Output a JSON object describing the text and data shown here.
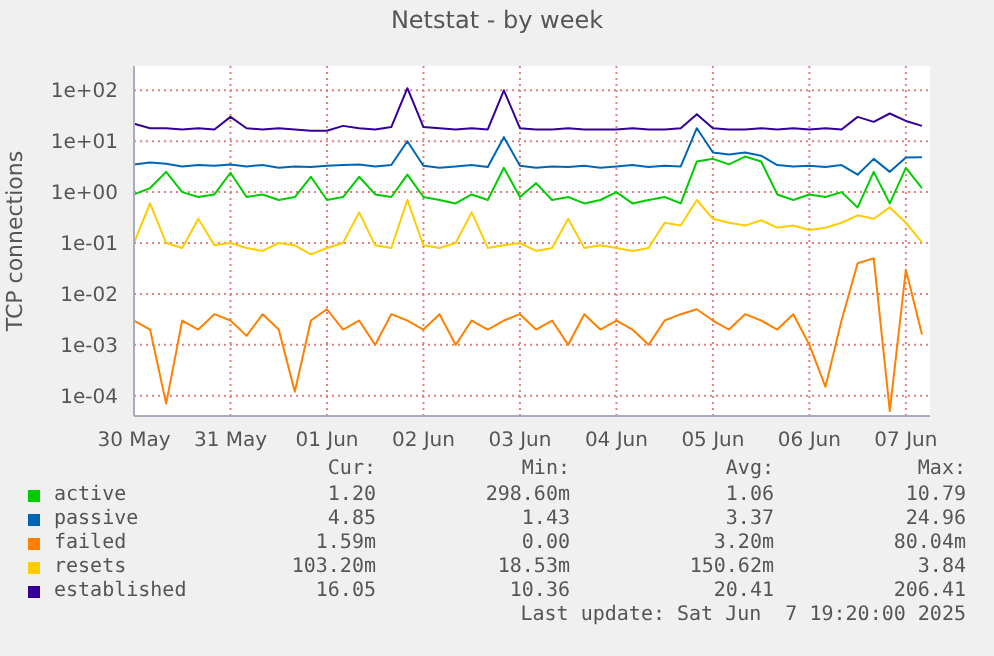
{
  "chart_data": {
    "type": "line",
    "title": "Netstat - by week",
    "ylabel": "TCP connections",
    "log": "y",
    "grid": true,
    "legend": "bottom",
    "marker": "none",
    "line_style": "solid",
    "x": [
      "2025-05-30T00:00",
      "2025-05-30T04:00",
      "2025-05-30T08:00",
      "2025-05-30T12:00",
      "2025-05-30T16:00",
      "2025-05-30T20:00",
      "2025-05-31T00:00",
      "2025-05-31T04:00",
      "2025-05-31T08:00",
      "2025-05-31T12:00",
      "2025-05-31T16:00",
      "2025-05-31T20:00",
      "2025-06-01T00:00",
      "2025-06-01T04:00",
      "2025-06-01T08:00",
      "2025-06-01T12:00",
      "2025-06-01T16:00",
      "2025-06-01T20:00",
      "2025-06-02T00:00",
      "2025-06-02T04:00",
      "2025-06-02T08:00",
      "2025-06-02T12:00",
      "2025-06-02T16:00",
      "2025-06-02T20:00",
      "2025-06-03T00:00",
      "2025-06-03T04:00",
      "2025-06-03T08:00",
      "2025-06-03T12:00",
      "2025-06-03T16:00",
      "2025-06-03T20:00",
      "2025-06-04T00:00",
      "2025-06-04T04:00",
      "2025-06-04T08:00",
      "2025-06-04T12:00",
      "2025-06-04T16:00",
      "2025-06-04T20:00",
      "2025-06-05T00:00",
      "2025-06-05T04:00",
      "2025-06-05T08:00",
      "2025-06-05T12:00",
      "2025-06-05T16:00",
      "2025-06-05T20:00",
      "2025-06-06T00:00",
      "2025-06-06T04:00",
      "2025-06-06T08:00",
      "2025-06-06T12:00",
      "2025-06-06T16:00",
      "2025-06-06T20:00",
      "2025-06-07T00:00",
      "2025-06-07T04:00"
    ],
    "xlim": [
      "2025-05-30T00:00",
      "2025-06-07T06:00"
    ],
    "xticks": [
      {
        "value": "2025-05-30T00:00",
        "label": "30 May"
      },
      {
        "value": "2025-05-31T00:00",
        "label": "31 May"
      },
      {
        "value": "2025-06-01T00:00",
        "label": "01 Jun"
      },
      {
        "value": "2025-06-02T00:00",
        "label": "02 Jun"
      },
      {
        "value": "2025-06-03T00:00",
        "label": "03 Jun"
      },
      {
        "value": "2025-06-04T00:00",
        "label": "04 Jun"
      },
      {
        "value": "2025-06-05T00:00",
        "label": "05 Jun"
      },
      {
        "value": "2025-06-06T00:00",
        "label": "06 Jun"
      },
      {
        "value": "2025-06-07T00:00",
        "label": "07 Jun"
      }
    ],
    "ylim": [
      4e-05,
      300
    ],
    "yticks": [
      {
        "value": 0.0001,
        "label": "1e-04"
      },
      {
        "value": 0.001,
        "label": "1e-03"
      },
      {
        "value": 0.01,
        "label": "1e-02"
      },
      {
        "value": 0.1,
        "label": "1e-01"
      },
      {
        "value": 1,
        "label": "1e+00"
      },
      {
        "value": 10,
        "label": "1e+01"
      },
      {
        "value": 100,
        "label": "1e+02"
      }
    ],
    "series": [
      {
        "name": "active",
        "color": "#00cc00",
        "values": [
          0.9,
          1.2,
          2.5,
          1.0,
          0.8,
          0.9,
          2.4,
          0.8,
          0.9,
          0.7,
          0.8,
          2.0,
          0.7,
          0.8,
          2.0,
          0.9,
          0.8,
          2.2,
          0.8,
          0.7,
          0.6,
          0.9,
          0.7,
          3.0,
          0.8,
          1.5,
          0.7,
          0.8,
          0.6,
          0.7,
          1.0,
          0.6,
          0.7,
          0.8,
          0.6,
          4.0,
          4.5,
          3.5,
          5.0,
          4.0,
          0.9,
          0.7,
          0.9,
          0.8,
          1.0,
          0.5,
          2.5,
          0.6,
          3.0,
          1.2
        ]
      },
      {
        "name": "passive",
        "color": "#0066b3",
        "values": [
          3.5,
          3.8,
          3.6,
          3.2,
          3.4,
          3.3,
          3.5,
          3.2,
          3.4,
          3.0,
          3.2,
          3.1,
          3.3,
          3.4,
          3.5,
          3.2,
          3.4,
          10,
          3.3,
          3.0,
          3.2,
          3.4,
          3.1,
          12,
          3.3,
          3.0,
          3.2,
          3.1,
          3.3,
          3.0,
          3.2,
          3.4,
          3.1,
          3.3,
          3.2,
          18,
          6,
          5.5,
          6,
          5.2,
          3.4,
          3.2,
          3.3,
          3.1,
          3.4,
          2.2,
          4.5,
          2.5,
          4.8,
          4.85
        ]
      },
      {
        "name": "failed",
        "color": "#ff8000",
        "values": [
          0.003,
          0.002,
          7e-05,
          0.003,
          0.002,
          0.004,
          0.003,
          0.0015,
          0.004,
          0.002,
          0.00012,
          0.003,
          0.005,
          0.002,
          0.003,
          0.001,
          0.004,
          0.003,
          0.002,
          0.004,
          0.001,
          0.003,
          0.002,
          0.003,
          0.004,
          0.002,
          0.003,
          0.001,
          0.004,
          0.002,
          0.003,
          0.002,
          0.001,
          0.003,
          0.004,
          0.005,
          0.003,
          0.002,
          0.004,
          0.003,
          0.002,
          0.004,
          0.001,
          0.00015,
          0.003,
          0.04,
          0.05,
          5e-05,
          0.03,
          0.00159
        ]
      },
      {
        "name": "resets",
        "color": "#ffcc00",
        "values": [
          0.1,
          0.6,
          0.1,
          0.08,
          0.3,
          0.09,
          0.1,
          0.08,
          0.07,
          0.1,
          0.09,
          0.06,
          0.08,
          0.1,
          0.4,
          0.09,
          0.08,
          0.7,
          0.09,
          0.08,
          0.1,
          0.4,
          0.08,
          0.09,
          0.1,
          0.07,
          0.08,
          0.3,
          0.08,
          0.09,
          0.08,
          0.07,
          0.08,
          0.25,
          0.22,
          0.7,
          0.3,
          0.25,
          0.22,
          0.28,
          0.2,
          0.22,
          0.18,
          0.2,
          0.25,
          0.35,
          0.3,
          0.5,
          0.25,
          0.1032
        ]
      },
      {
        "name": "established",
        "color": "#330099",
        "values": [
          22,
          18,
          18,
          17,
          18,
          17,
          30,
          18,
          17,
          18,
          17,
          16,
          16,
          20,
          18,
          17,
          19,
          110,
          19,
          18,
          17,
          18,
          17,
          100,
          18,
          17,
          17,
          18,
          17,
          17,
          17,
          18,
          17,
          17,
          18,
          34,
          18,
          17,
          17,
          18,
          17,
          18,
          17,
          18,
          17,
          30,
          24,
          35,
          25,
          20
        ]
      }
    ],
    "annotations": [
      "Cur:",
      "Min:",
      "Avg:",
      "Max:",
      "1.20",
      "298.60m",
      "1.06",
      "10.79",
      "4.85",
      "1.43",
      "3.37",
      "24.96",
      "1.59m",
      "0.00",
      "3.20m",
      "80.04m",
      "103.20m",
      "18.53m",
      "150.62m",
      "3.84",
      "16.05",
      "10.36",
      "20.41",
      "206.41",
      "Last update: Sat Jun  7 19:20:00 2025"
    ]
  }
}
